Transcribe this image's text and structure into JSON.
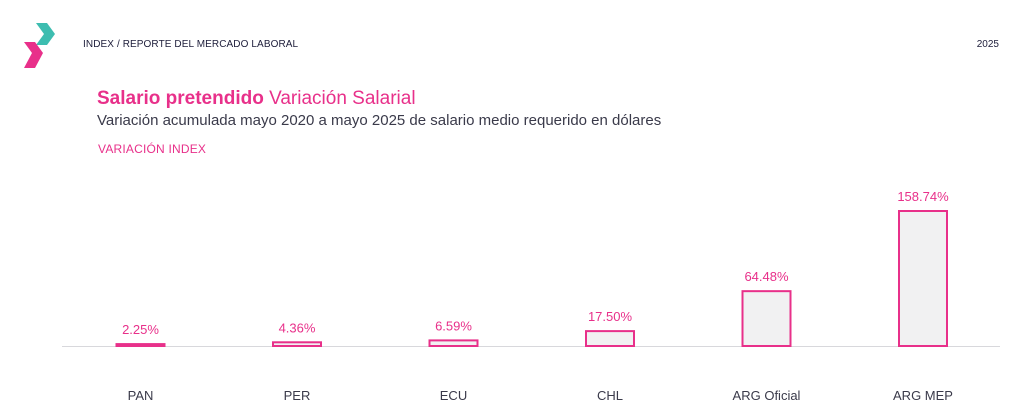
{
  "header": {
    "breadcrumb": "INDEX / REPORTE DEL MERCADO LABORAL",
    "year": "2025"
  },
  "title": {
    "bold": "Salario pretendido",
    "regular": " Variación Salarial"
  },
  "subtitle": "Variación acumulada mayo 2020 a mayo 2025 de salario medio requerido en dólares",
  "colors": {
    "accent": "#e8308a",
    "bar_fill": "#f1f1f2",
    "logo_teal": "#3dbdb0",
    "logo_pink": "#e8308a"
  },
  "logo": {
    "icon": "index-logo-icon"
  },
  "chart_data": {
    "type": "bar",
    "series": [
      {
        "name": "VARIACIÓN INDEX",
        "values": [
          2.25,
          4.36,
          6.59,
          17.5,
          64.48,
          158.74
        ]
      }
    ],
    "categories": [
      "PAN",
      "PER",
      "ECU",
      "CHL",
      "ARG Oficial",
      "ARG MEP"
    ],
    "data_labels": [
      "2.25%",
      "4.36%",
      "6.59%",
      "17.50%",
      "64.48%",
      "158.74%"
    ],
    "ylim": [
      0,
      158.74
    ],
    "grid": false,
    "legend": "top-left"
  }
}
